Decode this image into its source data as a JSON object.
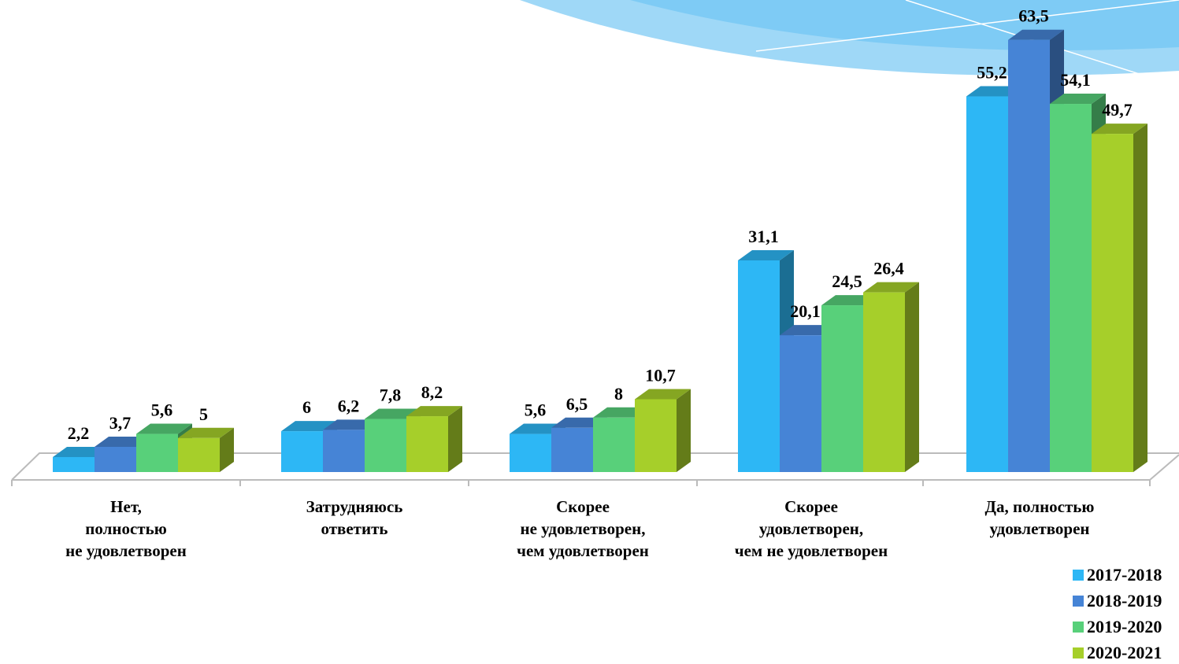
{
  "chart_data": {
    "type": "bar3d",
    "categories": [
      "Нет,\nполностью\nне удовлетворен",
      "Затрудняюсь\nответить",
      "Скорее\nне удовлетворен,\nчем удовлетворен",
      "Скорее\nудовлетворен,\nчем не удовлетворен",
      "Да, полностью\nудовлетворен"
    ],
    "series": [
      {
        "name": "2017-2018",
        "color": "#2db7f5",
        "values": [
          2.2,
          6,
          5.6,
          31.1,
          55.2
        ],
        "value_labels": [
          "2,2",
          "6",
          "5,6",
          "31,1",
          "55,2"
        ]
      },
      {
        "name": "2018-2019",
        "color": "#4684d6",
        "values": [
          3.7,
          6.2,
          6.5,
          20.1,
          63.5
        ],
        "value_labels": [
          "3,7",
          "6,2",
          "6,5",
          "20,1",
          "63,5"
        ]
      },
      {
        "name": "2019-2020",
        "color": "#58d07a",
        "values": [
          5.6,
          7.8,
          8,
          24.5,
          54.1
        ],
        "value_labels": [
          "5,6",
          "7,8",
          "8",
          "24,5",
          "54,1"
        ]
      },
      {
        "name": "2020-2021",
        "color": "#a6cf2a",
        "values": [
          5,
          8.2,
          10.7,
          26.4,
          49.7
        ],
        "value_labels": [
          "5",
          "8,2",
          "10,7",
          "26,4",
          "49,7"
        ]
      }
    ],
    "legend": "bottom-right"
  }
}
